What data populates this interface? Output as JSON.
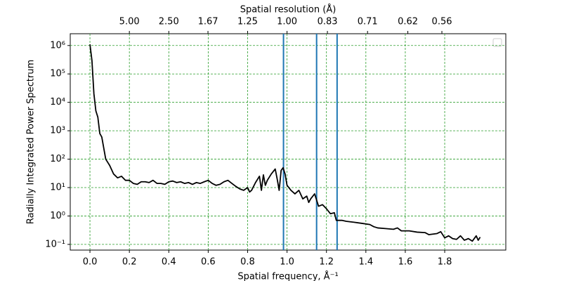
{
  "chart_data": {
    "type": "line",
    "xlabel": "Spatial frequency, Å⁻¹",
    "ylabel": "Radially Integrated Power Spectrum",
    "x2label": "Spatial resolution (Å)",
    "x": [
      0,
      0.01,
      0.02,
      0.03,
      0.04,
      0.05,
      0.06,
      0.08,
      0.1,
      0.12,
      0.14,
      0.16,
      0.18,
      0.2,
      0.22,
      0.24,
      0.26,
      0.28,
      0.3,
      0.32,
      0.34,
      0.36,
      0.38,
      0.4,
      0.42,
      0.44,
      0.46,
      0.48,
      0.5,
      0.52,
      0.54,
      0.56,
      0.58,
      0.6,
      0.62,
      0.64,
      0.66,
      0.68,
      0.7,
      0.72,
      0.74,
      0.76,
      0.78,
      0.8,
      0.81,
      0.82,
      0.84,
      0.86,
      0.87,
      0.88,
      0.89,
      0.9,
      0.92,
      0.94,
      0.95,
      0.96,
      0.97,
      0.98,
      0.99,
      1.0,
      1.02,
      1.04,
      1.06,
      1.08,
      1.1,
      1.11,
      1.12,
      1.14,
      1.16,
      1.18,
      1.2,
      1.22,
      1.24,
      1.25,
      1.28,
      1.3,
      1.34,
      1.38,
      1.42,
      1.44,
      1.46,
      1.5,
      1.54,
      1.56,
      1.58,
      1.62,
      1.66,
      1.7,
      1.72,
      1.76,
      1.78,
      1.8,
      1.82,
      1.84,
      1.86,
      1.88,
      1.9,
      1.92,
      1.94,
      1.96,
      1.97,
      1.98
    ],
    "values": [
      1100000,
      300000,
      20000,
      5000,
      3000,
      800,
      600,
      100,
      60,
      30,
      22,
      25,
      18,
      18,
      14,
      13,
      16,
      16,
      15,
      18,
      14,
      14,
      13,
      16,
      17,
      15,
      16,
      14,
      15,
      13,
      15,
      14,
      16,
      18,
      14,
      12,
      13,
      16,
      18,
      14,
      11,
      9,
      8,
      10,
      7,
      8,
      15,
      25,
      8,
      28,
      12,
      18,
      30,
      45,
      20,
      8,
      40,
      50,
      30,
      12,
      8,
      6,
      8,
      4,
      5,
      3,
      4,
      6,
      2.2,
      2.5,
      1.8,
      1.2,
      1.3,
      0.7,
      0.7,
      0.65,
      0.6,
      0.55,
      0.5,
      0.42,
      0.38,
      0.36,
      0.34,
      0.38,
      0.3,
      0.3,
      0.27,
      0.26,
      0.22,
      0.24,
      0.28,
      0.17,
      0.2,
      0.16,
      0.15,
      0.2,
      0.14,
      0.16,
      0.13,
      0.2,
      0.14,
      0.18
    ],
    "color": "#000000",
    "xlim": [
      -0.1,
      2.11
    ],
    "xticks": [
      {
        "value": 0,
        "label": "0.0"
      },
      0.2,
      0.4,
      0.6,
      0.8,
      {
        "value": 1,
        "label": "1.0"
      },
      1.2,
      1.4,
      1.6,
      1.8
    ],
    "x2scale": "reciprocal",
    "x2ticks": [
      {
        "value": 5,
        "label": "5.00"
      },
      {
        "value": 2.5,
        "label": "2.50"
      },
      1.67,
      1.25,
      {
        "value": 1,
        "label": "1.00"
      },
      0.83,
      0.71,
      0.62,
      0.56
    ],
    "yscale": "log",
    "ylim": [
      0.063,
      2600000
    ],
    "yticks": [
      {
        "value": 0.1,
        "label": "10⁻¹"
      },
      {
        "value": 1,
        "label": "10⁰"
      },
      {
        "value": 10,
        "label": "10¹"
      },
      {
        "value": 100,
        "label": "10²"
      },
      {
        "value": 1000,
        "label": "10³"
      },
      {
        "value": 10000,
        "label": "10⁴"
      },
      {
        "value": 100000,
        "label": "10⁵"
      },
      {
        "value": 1000000,
        "label": "10⁶"
      }
    ],
    "vlines": [
      0.982,
      1.15,
      1.254
    ],
    "vline_color": "#1f77b4",
    "grid": true
  }
}
